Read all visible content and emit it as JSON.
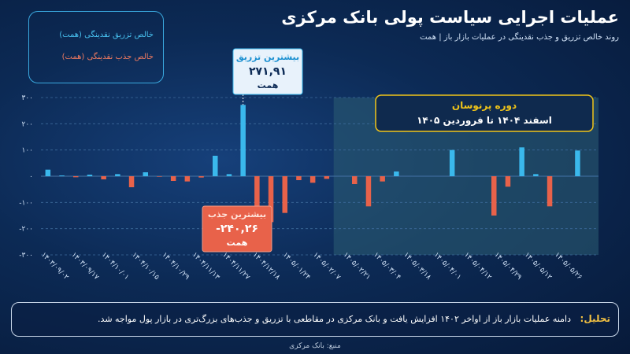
{
  "header": {
    "title": "عملیات اجرایی سیاست پولی بانک مرکزی",
    "subtitle": "روند خالص تزریق و جذب نقدینگی در عملیات بازار باز | همت"
  },
  "legend": {
    "injection": "خالص تزریق نقدینگی (همت)",
    "absorption": "خالص جذب نقدینگی (همت)"
  },
  "colors": {
    "injection": "#3ab8ec",
    "absorption": "#e8624a",
    "forecast_bg": "#2a5a72",
    "grid": "#3d6a9a",
    "forecast_box": "#f0c419"
  },
  "callouts": {
    "max_injection": {
      "label": "بیشترین تزریق",
      "value": "۲۷۱,۹۱",
      "unit": "همت"
    },
    "max_absorption": {
      "label": "بیشترین جذب",
      "value": "-۲۴۰,۲۶",
      "unit": "همت"
    }
  },
  "forecast": {
    "title": "دوره پرنوسان",
    "range": "اسفند ۱۴۰۴ تا فروردین ۱۴۰۵"
  },
  "note": {
    "label": "تحلیل:",
    "text": "دامنه عملیات بازار باز از اواخر ۱۴۰۲ افزایش یافت و بانک مرکزی در مقاطعی با تزریق و جذب‌های بزرگ‌تری در بازار پول مواجه شد."
  },
  "source": "منبع: بانک مرکزی",
  "chart_data": {
    "type": "bar",
    "ylim": [
      -300,
      300
    ],
    "yticks": [
      300,
      200,
      100,
      0,
      -100,
      -200,
      -300
    ],
    "ytick_labels": [
      "۳۰۰",
      "۲۰۰",
      "۱۰۰",
      "۰",
      "-۱۰۰",
      "-۲۰۰",
      "-۳۰۰"
    ],
    "xtick_labels": [
      "۱۴۰۳/۰۹/۰۲",
      "۱۴۰۳/۰۹/۱۷",
      "۱۴۰۴/۱۰/۰۱",
      "۱۴۰۴/۱۰/۱۵",
      "۱۴۰۴/۱۰/۲۹",
      "۱۴۰۴/۱۱/۱۳",
      "۱۴۰۴/۱۱/۲۷",
      "۱۴۰۴/۱۲/۱۸",
      "۱۴۰۵/۰۱/۲۴",
      "۱۴۰۵/۰۲/۰۷",
      "۱۴۰۵/۰۲/۲۱",
      "۱۴۰۵/۰۳/۰۴",
      "۱۴۰۵/۰۳/۱۸",
      "۱۴۰۵/۰۴/۰۱",
      "۱۴۰۵/۰۴/۱۲",
      "۱۴۰۵/۰۴/۲۹",
      "۱۴۰۵/۰۵/۱۲",
      "۱۴۰۵/۰۵/۲۶"
    ],
    "values": [
      25,
      3,
      -4,
      6,
      -12,
      8,
      -42,
      15,
      -2,
      -18,
      -20,
      -5,
      78,
      8,
      272,
      -240,
      -175,
      -140,
      -15,
      -25,
      -10,
      0,
      -30,
      -115,
      -20,
      18,
      0,
      0,
      0,
      100,
      0,
      0,
      -150,
      -40,
      110,
      8,
      -115,
      0,
      98,
      0
    ],
    "grid": true,
    "legend_position": "top-left"
  }
}
